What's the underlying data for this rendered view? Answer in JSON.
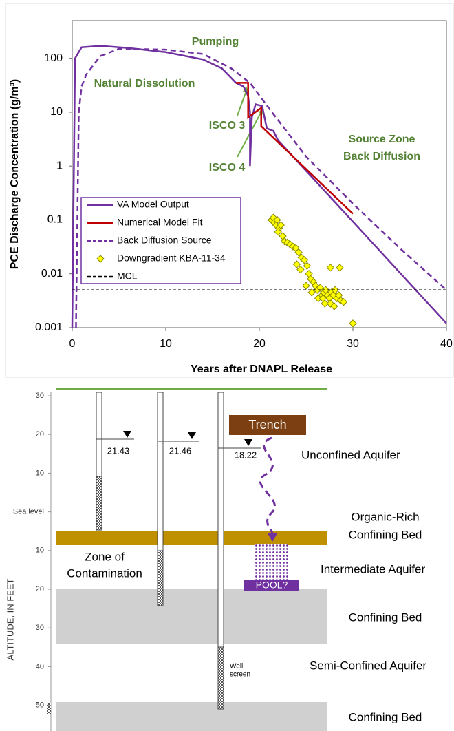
{
  "chart_data": {
    "type": "line",
    "xlabel": "Years after DNAPL Release",
    "ylabel": "PCE Discharge Concentration (g/m³)",
    "xlim": [
      0,
      40
    ],
    "xticks": [
      0,
      10,
      20,
      30,
      40
    ],
    "ylim": [
      0.001,
      500
    ],
    "yticks": [
      0.001,
      0.01,
      0.1,
      1,
      10,
      100
    ],
    "log_y": true,
    "legend": "center left",
    "annotations": [
      "Pumping",
      "Natural Dissolution",
      "ISCO 3",
      "ISCO 4",
      "Source Zone",
      "Back Diffusion"
    ],
    "series": [
      {
        "name": "VA Model Output",
        "type": "line",
        "color": "#7030a0",
        "dash": false,
        "x": [
          0,
          0.3,
          1,
          3,
          6,
          10,
          14,
          16,
          17.5,
          18.3,
          18.8,
          19,
          19,
          19.2,
          19.6,
          20.3,
          20.8,
          21.5,
          22,
          30,
          40
        ],
        "values": [
          0.001,
          100,
          160,
          170,
          155,
          130,
          95,
          65,
          35,
          30,
          20,
          10,
          1,
          8,
          14,
          13,
          5,
          4.5,
          3,
          0.093,
          0.0012
        ]
      },
      {
        "name": "Numerical Model Fit",
        "type": "line",
        "color": "#c00000",
        "dash": false,
        "x": [
          17.5,
          18.8,
          18.8,
          20.2,
          20.2,
          30
        ],
        "values": [
          35,
          35,
          8,
          12,
          5.5,
          0.13
        ]
      },
      {
        "name": "Back Diffusion Source",
        "type": "line",
        "color": "#7030a0",
        "dash": true,
        "x": [
          0.4,
          0.7,
          1,
          1.5,
          3,
          5,
          10,
          14,
          17,
          19,
          21,
          25,
          30,
          35,
          40
        ],
        "values": [
          0.001,
          10,
          30,
          50,
          110,
          150,
          145,
          120,
          65,
          35,
          12,
          1.5,
          0.2,
          0.03,
          0.005
        ]
      },
      {
        "name": "Downgradient KBA-11-34",
        "type": "scatter",
        "color": "#ffff00",
        "x": [
          21.3,
          21.5,
          21.6,
          21.8,
          21.9,
          22.1,
          22.3,
          22.0,
          22.5,
          22.7,
          23.0,
          23.3,
          23.6,
          23.9,
          24.2,
          24.5,
          24.0,
          24.8,
          25.1,
          24.4,
          25.3,
          25.5,
          25.0,
          25.8,
          26.0,
          26.2,
          26.5,
          26.7,
          26.9,
          27.1,
          27.3,
          27.5,
          27.7,
          27.9,
          28.1,
          28.3,
          28.5,
          28.7,
          29.0,
          26.3,
          27.0,
          27.6,
          27.6,
          28.6,
          30.0,
          25.6,
          26.8,
          28.0
        ],
        "values": [
          0.1,
          0.11,
          0.09,
          0.08,
          0.1,
          0.07,
          0.08,
          0.06,
          0.05,
          0.04,
          0.038,
          0.035,
          0.032,
          0.03,
          0.025,
          0.02,
          0.015,
          0.018,
          0.014,
          0.012,
          0.01,
          0.008,
          0.006,
          0.007,
          0.006,
          0.005,
          0.0055,
          0.004,
          0.0045,
          0.005,
          0.004,
          0.0035,
          0.0045,
          0.004,
          0.005,
          0.0035,
          0.004,
          0.0032,
          0.003,
          0.0035,
          0.0028,
          0.0028,
          0.013,
          0.013,
          0.0012,
          0.0045,
          0.0035,
          0.0025
        ]
      },
      {
        "name": "MCL",
        "type": "line",
        "color": "#000000",
        "dash": true,
        "x": [
          0,
          40
        ],
        "values": [
          0.005,
          0.005
        ]
      }
    ]
  },
  "diagram": {
    "axis_label": "ALTITUDE, IN FEET",
    "altitude_ticks": [
      "30",
      "20",
      "10",
      "Sea level",
      "10",
      "20",
      "30",
      "40",
      "50"
    ],
    "water_levels": [
      "21.43",
      "21.46",
      "18.22"
    ],
    "trench": "Trench",
    "pool": "POOL?",
    "well_screen": [
      "Well",
      "screen"
    ],
    "zone": [
      "Zone of",
      "Contamination"
    ],
    "layer_labels": [
      "Unconfined Aquifer",
      "Organic-Rich",
      "Confining Bed",
      "Intermediate Aquifer",
      "Confining Bed",
      "Semi-Confined Aquifer",
      "Confining Bed"
    ]
  }
}
